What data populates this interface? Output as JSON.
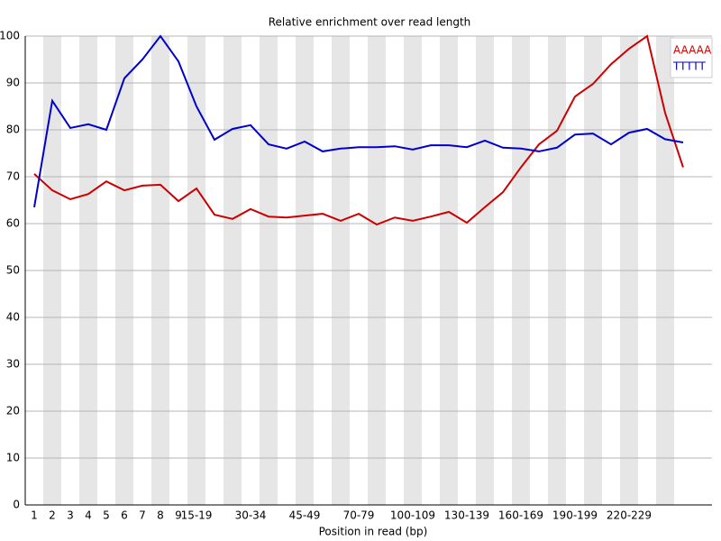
{
  "chart_data": {
    "type": "line",
    "title": "Relative enrichment over read length",
    "x_label": "Position in read (bp)",
    "categories": [
      "1",
      "2",
      "3",
      "4",
      "5",
      "6",
      "7",
      "8",
      "9",
      "15-19",
      null,
      null,
      "30-34",
      null,
      null,
      "45-49",
      null,
      null,
      "70-79",
      null,
      null,
      "100-109",
      null,
      null,
      "130-139",
      null,
      null,
      "160-169",
      null,
      null,
      "190-199",
      null,
      null,
      "220-229",
      null,
      null,
      null
    ],
    "series": [
      {
        "name": "AAAAA",
        "color": "#cc0000",
        "values": [
          70.6,
          67.1,
          65.2,
          66.3,
          69,
          67.1,
          68.1,
          68.3,
          64.8,
          67.5,
          61.9,
          61,
          63.1,
          61.5,
          61.3,
          61.7,
          62.1,
          60.6,
          62.1,
          59.8,
          61.3,
          60.6,
          61.5,
          62.5,
          60.2,
          63.5,
          66.7,
          72,
          76.9,
          79.8,
          87.1,
          89.8,
          94,
          97.3,
          100,
          83.6,
          72
        ]
      },
      {
        "name": "TTTTT",
        "color": "#0000cc",
        "values": [
          63.5,
          86.2,
          80.4,
          81.2,
          80,
          91,
          95,
          100,
          94.6,
          85,
          77.9,
          80.2,
          81,
          76.9,
          76,
          77.5,
          75.4,
          76,
          76.3,
          76.3,
          76.5,
          75.8,
          76.7,
          76.7,
          76.3,
          77.7,
          76.2,
          76,
          75.4,
          76.2,
          79,
          79.2,
          76.9,
          79.4,
          80.2,
          78,
          77.3
        ]
      }
    ],
    "ylim": [
      0,
      100
    ],
    "yticks": [
      0,
      10,
      20,
      30,
      40,
      50,
      60,
      70,
      80,
      90,
      100
    ],
    "grid": true,
    "legend": "top-right"
  }
}
